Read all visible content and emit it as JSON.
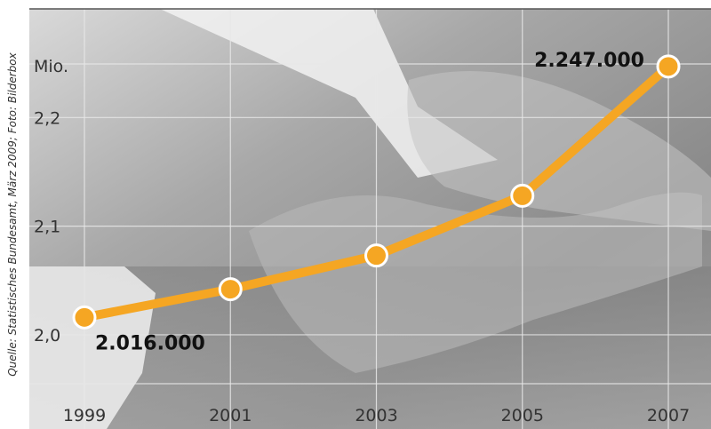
{
  "source": "Quelle: Statistisches Bundesamt, März 2009; Foto: Bilderbox",
  "colors": {
    "line": "#f5a623",
    "marker_fill": "#f5a623",
    "marker_stroke": "#ffffff",
    "background_photo": "#8f8f8f",
    "grid": "#e8e8e8",
    "tick_label": "#333333",
    "value_label": "#111111"
  },
  "chart_data": {
    "type": "line",
    "title": "",
    "xlabel": "",
    "ylabel": "Mio.",
    "x": [
      1999,
      2001,
      2003,
      2005,
      2007
    ],
    "x_tick_labels": [
      "1999",
      "2001",
      "2003",
      "2005",
      "2007"
    ],
    "y_ticks": [
      2.0,
      2.1,
      2.2
    ],
    "y_tick_labels": [
      "2,0",
      "2,1",
      "2,2"
    ],
    "ylim": [
      1.955,
      2.3
    ],
    "xlim": [
      1999,
      2007
    ],
    "grid": true,
    "series": [
      {
        "values": [
          2.016,
          2.042,
          2.073,
          2.128,
          2.247
        ]
      }
    ],
    "annotations": [
      {
        "index": 0,
        "text": "2.016.000"
      },
      {
        "index": 4,
        "text": "2.247.000"
      }
    ]
  }
}
